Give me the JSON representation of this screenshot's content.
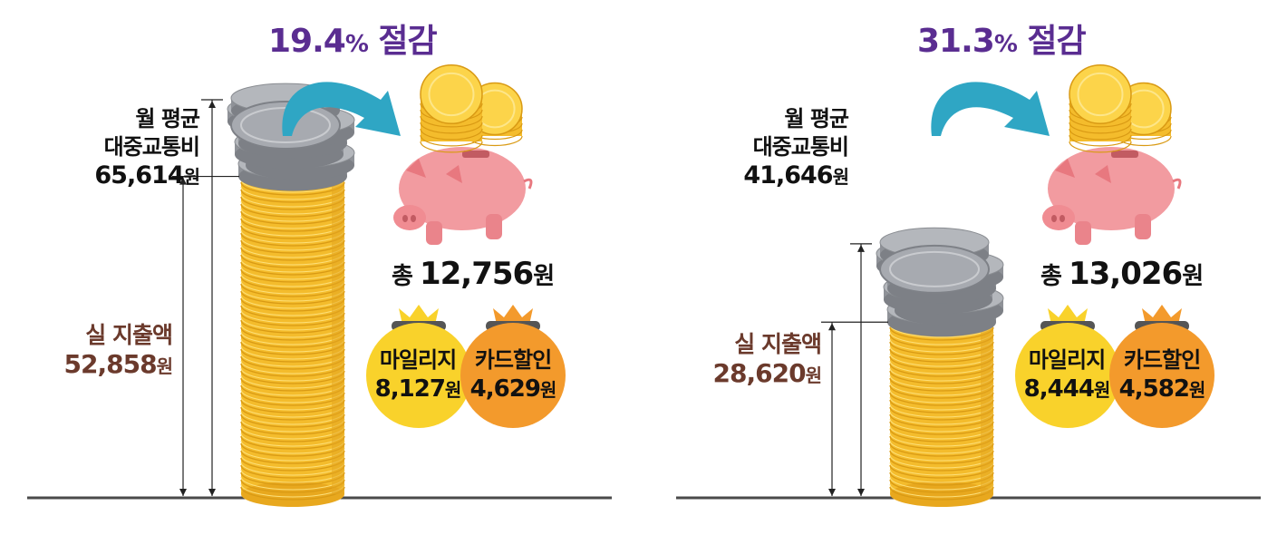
{
  "colors": {
    "coin_gold": "#f7c944",
    "coin_silver": "#a2a5ab",
    "saving_purple": "#5a2d91",
    "actual_brown": "#6b3a2c",
    "piggy_pink": "#f29ba0",
    "bag_yellow": "#f9d22b",
    "bag_orange": "#f39a2c",
    "arrow_teal": "#2fa6c4"
  },
  "chart_data": [
    {
      "type": "bar",
      "title": "",
      "saving_label": {
        "pct": "19.4",
        "pct_sign": "%",
        "suffix": " 절감"
      },
      "total_label": {
        "line1": "월 평균",
        "line2": "대중교통비",
        "value": "65,614",
        "unit": "원"
      },
      "actual_label": {
        "line1": "실 지출액",
        "value": "52,858",
        "unit": "원"
      },
      "sum_label": {
        "prefix": "총 ",
        "value": "12,756",
        "unit": "원"
      },
      "bags": [
        {
          "name": "마일리지",
          "value": "8,127",
          "unit": "원",
          "color": "#f9d22b"
        },
        {
          "name": "카드할인",
          "value": "4,629",
          "unit": "원",
          "color": "#f39a2c"
        }
      ],
      "values": {
        "monthly_avg_fare": 65614,
        "actual_spend": 52858,
        "mileage": 8127,
        "card_discount": 4629,
        "total_saving": 12756,
        "saving_pct": 19.4
      }
    },
    {
      "type": "bar",
      "title": "",
      "saving_label": {
        "pct": "31.3",
        "pct_sign": "%",
        "suffix": " 절감"
      },
      "total_label": {
        "line1": "월 평균",
        "line2": "대중교통비",
        "value": "41,646",
        "unit": "원"
      },
      "actual_label": {
        "line1": "실 지출액",
        "value": "28,620",
        "unit": "원"
      },
      "sum_label": {
        "prefix": "총 ",
        "value": "13,026",
        "unit": "원"
      },
      "bags": [
        {
          "name": "마일리지",
          "value": "8,444",
          "unit": "원",
          "color": "#f9d22b"
        },
        {
          "name": "카드할인",
          "value": "4,582",
          "unit": "원",
          "color": "#f39a2c"
        }
      ],
      "values": {
        "monthly_avg_fare": 41646,
        "actual_spend": 28620,
        "mileage": 8444,
        "card_discount": 4582,
        "total_saving": 13026,
        "saving_pct": 31.3
      }
    }
  ]
}
